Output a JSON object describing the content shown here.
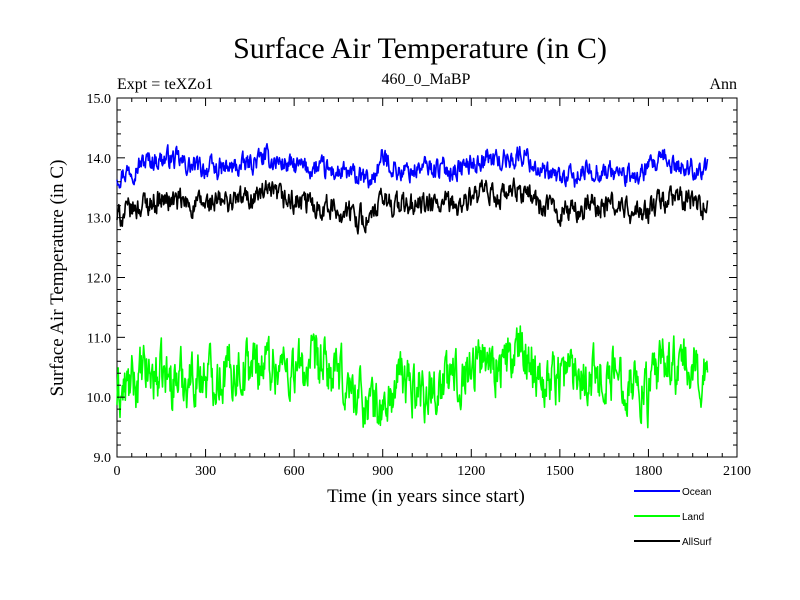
{
  "chart_data": {
    "type": "line",
    "title": "Surface Air Temperature (in C)",
    "subtitle": "460_0_MaBP",
    "left_label": "Expt = teXZo1",
    "right_label": "Ann",
    "xlabel": "Time (in years since start)",
    "ylabel": "Surface Air Temperature (in C)",
    "xlim": [
      0,
      2100
    ],
    "ylim": [
      9.0,
      15.0
    ],
    "x_ticks": [
      "0",
      "300",
      "600",
      "900",
      "1200",
      "1500",
      "1800",
      "2100"
    ],
    "y_ticks": [
      "9.0",
      "10.0",
      "11.0",
      "12.0",
      "13.0",
      "14.0",
      "15.0"
    ],
    "legend_position": "bottom-right",
    "series": [
      {
        "name": "Ocean",
        "color": "#0000ff",
        "x": [
          0,
          100,
          180,
          250,
          350,
          420,
          500,
          600,
          700,
          800,
          860,
          900,
          960,
          1050,
          1150,
          1250,
          1300,
          1380,
          1450,
          1550,
          1600,
          1700,
          1750,
          1800,
          1850,
          1900,
          2000
        ],
        "values": [
          13.7,
          13.95,
          14.0,
          13.85,
          13.8,
          13.85,
          14.0,
          13.85,
          13.8,
          13.7,
          13.6,
          14.0,
          13.75,
          13.85,
          13.8,
          14.0,
          13.95,
          14.05,
          13.7,
          13.65,
          13.8,
          13.75,
          13.65,
          13.8,
          13.95,
          13.85,
          13.8
        ]
      },
      {
        "name": "Land",
        "color": "#00ff00",
        "x": [
          0,
          100,
          180,
          250,
          350,
          420,
          500,
          600,
          700,
          800,
          860,
          900,
          960,
          1050,
          1150,
          1250,
          1300,
          1380,
          1450,
          1550,
          1600,
          1700,
          1750,
          1800,
          1850,
          1900,
          2000
        ],
        "values": [
          10.0,
          10.4,
          10.3,
          10.35,
          10.4,
          10.5,
          10.6,
          10.45,
          10.5,
          10.1,
          9.9,
          9.75,
          10.3,
          10.1,
          10.35,
          10.7,
          10.55,
          10.75,
          10.3,
          10.5,
          10.4,
          10.35,
          10.3,
          10.0,
          10.6,
          10.5,
          10.4
        ]
      },
      {
        "name": "AllSurf",
        "color": "#000000",
        "x": [
          0,
          100,
          180,
          250,
          350,
          420,
          500,
          600,
          700,
          800,
          860,
          900,
          960,
          1050,
          1150,
          1250,
          1300,
          1380,
          1450,
          1550,
          1600,
          1700,
          1750,
          1800,
          1850,
          1900,
          2000
        ],
        "values": [
          13.0,
          13.25,
          13.3,
          13.2,
          13.25,
          13.3,
          13.4,
          13.25,
          13.2,
          13.05,
          12.95,
          13.3,
          13.2,
          13.2,
          13.2,
          13.4,
          13.35,
          13.45,
          13.15,
          13.1,
          13.2,
          13.2,
          13.05,
          13.1,
          13.3,
          13.3,
          13.2
        ]
      }
    ]
  }
}
